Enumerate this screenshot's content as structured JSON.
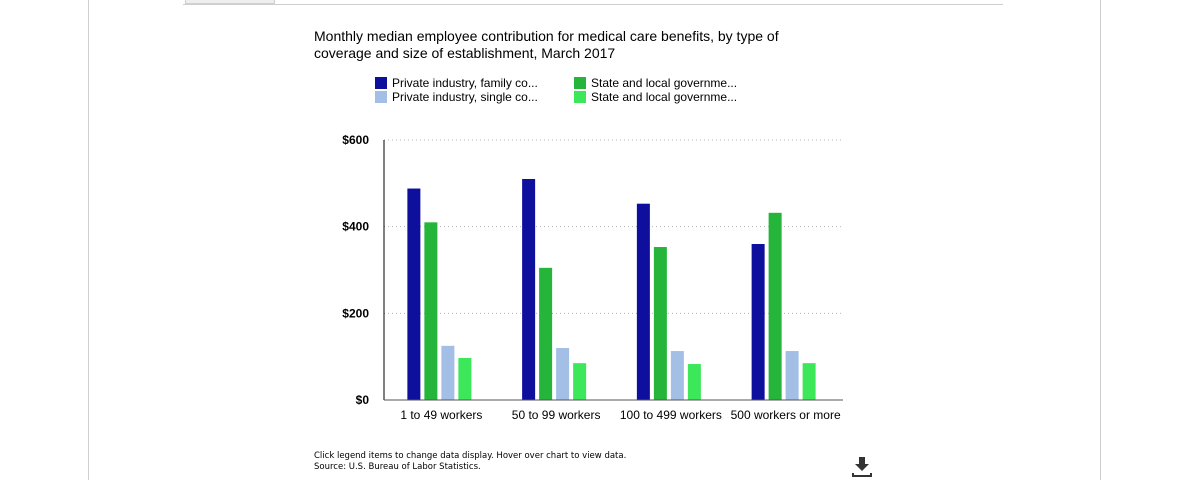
{
  "chart_data": {
    "type": "bar",
    "title": "Monthly median employee contribution for medical care benefits, by type of coverage and size of establishment, March 2017",
    "categories": [
      "1 to 49 workers",
      "50 to 99 workers",
      "100 to 499 workers",
      "500 workers or more"
    ],
    "series": [
      {
        "name": "Private industry, family co...",
        "color": "#0f0f9e",
        "values": [
          488,
          510,
          453,
          360
        ]
      },
      {
        "name": "State and local governme...",
        "color": "#24b53a",
        "values": [
          410,
          305,
          353,
          432
        ]
      },
      {
        "name": "Private industry, single co...",
        "color": "#a3bfe6",
        "values": [
          125,
          120,
          113,
          113
        ]
      },
      {
        "name": "State and local governme...",
        "color": "#3ce85a",
        "values": [
          97,
          85,
          83,
          85
        ]
      }
    ],
    "ylim": [
      0,
      600
    ],
    "yticks": [
      0,
      200,
      400,
      600
    ],
    "ytick_labels": [
      "$0",
      "$200",
      "$400",
      "$600"
    ],
    "grid": true,
    "legend_position": "top"
  },
  "footer": {
    "line1": "Click legend items to change data display. Hover over chart to view data.",
    "line2": "Source: U.S. Bureau of Labor Statistics."
  },
  "icons": {
    "download": "download-icon"
  }
}
